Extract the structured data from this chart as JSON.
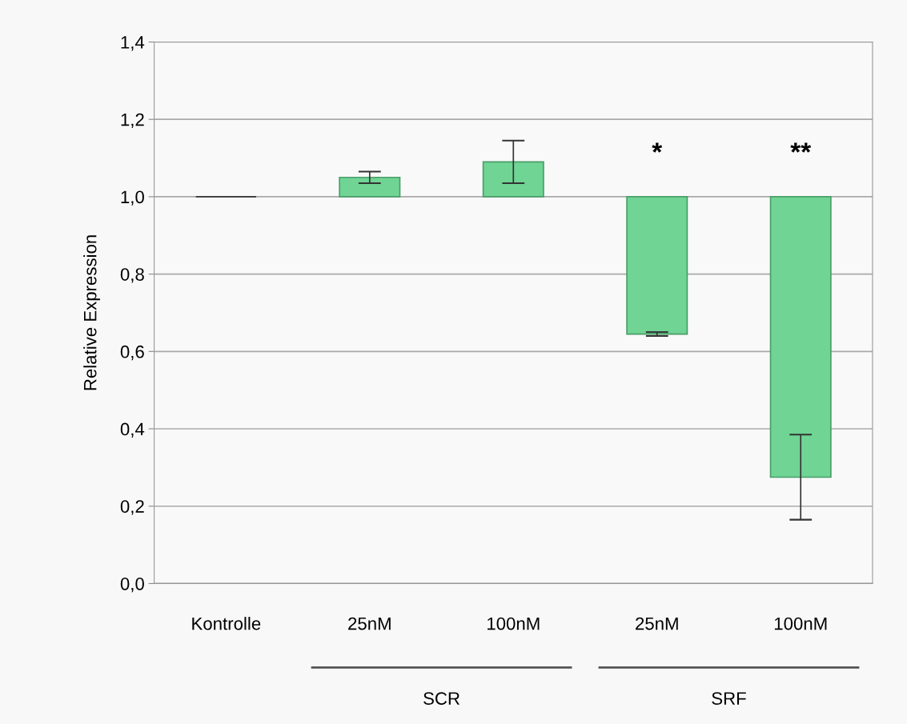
{
  "chart_data": {
    "type": "bar",
    "ylabel": "Relative Expression",
    "categories": [
      "Kontrolle",
      "25nM",
      "100nM",
      "25nM",
      "100nM"
    ],
    "base": [
      1,
      1,
      1,
      1,
      1
    ],
    "values": [
      0,
      0.05,
      0.09,
      -0.355,
      -0.725
    ],
    "errors": [
      null,
      0.015,
      0.055,
      0.005,
      0.11
    ],
    "colors": [
      "#333333",
      "#6fd494",
      "#6fd494",
      "#6fd494",
      "#6fd494"
    ],
    "ylim": [
      0,
      1.4
    ],
    "yticks": [
      {
        "value": 0,
        "label": "0,0"
      },
      {
        "value": 0.2,
        "label": "0,2"
      },
      {
        "value": 0.4,
        "label": "0,4"
      },
      {
        "value": 0.6,
        "label": "0,6"
      },
      {
        "value": 0.8,
        "label": "0,8"
      },
      {
        "value": 1.0,
        "label": "1,0"
      },
      {
        "value": 1.2,
        "label": "1,2"
      },
      {
        "value": 1.4,
        "label": "1,4"
      }
    ],
    "grid": "y",
    "annotations": [
      "*",
      "**",
      "SCR",
      "SRF"
    ]
  }
}
